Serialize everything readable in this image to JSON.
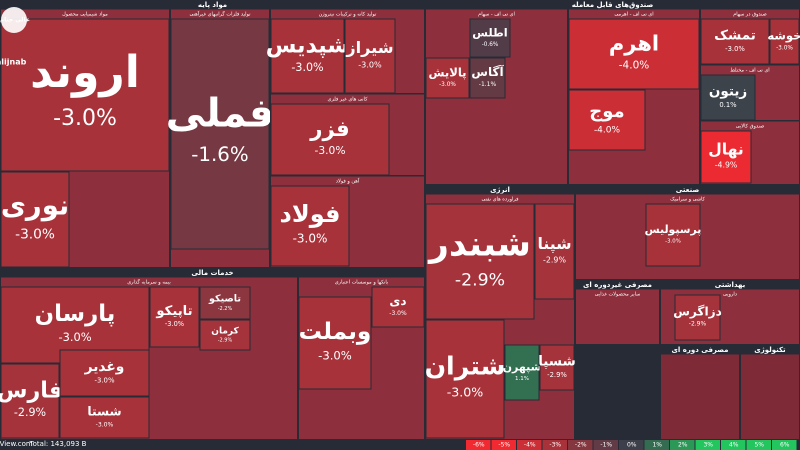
{
  "chart_data": {
    "type": "treemap",
    "logo": "عالی جناب",
    "watermark": "@Aalijnab",
    "brand": "BourseView.com",
    "total": "Total: 143,093 B",
    "sectors": [
      {
        "name": "مواد پایه",
        "groups": [
          {
            "name": "مواد شیمیایی محصول",
            "tiles": [
              {
                "name": "اروند",
                "value": -3.0,
                "label": "-3.0%"
              },
              {
                "name": "نوری",
                "value": -3.0,
                "label": "-3.0%"
              }
            ]
          },
          {
            "name": "تولید فلزات گرانبهای غیرآهنی",
            "tiles": [
              {
                "name": "فملی",
                "value": -1.6,
                "label": "-1.6%"
              }
            ]
          },
          {
            "name": "تولید کانه و ترکیبات نیتروژن",
            "tiles": [
              {
                "name": "شپدیس",
                "value": -3.0,
                "label": "-3.0%"
              },
              {
                "name": "شیراز",
                "value": -3.0,
                "label": "-3.0%"
              }
            ]
          },
          {
            "name": "کانی های غیر فلزی",
            "tiles": [
              {
                "name": "فزر",
                "value": -3.0,
                "label": "-3.0%"
              }
            ]
          },
          {
            "name": "آهن و فولاد",
            "tiles": [
              {
                "name": "فولاد",
                "value": -3.0,
                "label": "-3.0%"
              }
            ]
          }
        ]
      },
      {
        "name": "خدمات مالی",
        "groups": [
          {
            "name": "بیمه و سرمایه گذاری",
            "tiles": [
              {
                "name": "پارسان",
                "value": -3.0,
                "label": "-3.0%"
              },
              {
                "name": "فارس",
                "value": -2.9,
                "label": "-2.9%"
              },
              {
                "name": "وغدیر",
                "value": -3.0,
                "label": "-3.0%"
              },
              {
                "name": "شستا",
                "value": -3.0,
                "label": "-3.0%"
              },
              {
                "name": "تاپیکو",
                "value": -3.0,
                "label": "-3.0%"
              },
              {
                "name": "تاصیکو",
                "value": -2.2,
                "label": "-2.2%"
              },
              {
                "name": "کرمان",
                "value": -2.9,
                "label": "-2.9%"
              }
            ]
          },
          {
            "name": "بانکها و موسسات اعتباری",
            "tiles": [
              {
                "name": "وبملت",
                "value": -3.0,
                "label": "-3.0%"
              },
              {
                "name": "دی",
                "value": -3.0,
                "label": "-3.0%"
              }
            ]
          }
        ]
      },
      {
        "name": "صندوق‌های قابل معامله",
        "groups": [
          {
            "name": "ای تی اف - سهام",
            "tiles": [
              {
                "name": "اطلس",
                "value": -0.6,
                "label": "-0.6%"
              },
              {
                "name": "پالایش",
                "value": -3.0,
                "label": "-3.0%"
              },
              {
                "name": "آگاس",
                "value": -1.1,
                "label": "-1.1%"
              }
            ]
          },
          {
            "name": "ای تی اف - اهرمی",
            "tiles": [
              {
                "name": "اهرم",
                "value": -4.0,
                "label": "-4.0%"
              },
              {
                "name": "موج",
                "value": -4.0,
                "label": "-4.0%"
              }
            ]
          },
          {
            "name": "صندوق در سهام",
            "tiles": [
              {
                "name": "تمشک",
                "value": -3.0,
                "label": "-3.0%"
              },
              {
                "name": "خوشه",
                "value": -3.0,
                "label": "-3.0%"
              }
            ]
          },
          {
            "name": "ای تی اف - مختلط",
            "tiles": [
              {
                "name": "زیتون",
                "value": 0.1,
                "label": "0.1%"
              }
            ]
          },
          {
            "name": "صندوق کالایی",
            "tiles": [
              {
                "name": "نهال",
                "value": -4.9,
                "label": "-4.9%"
              }
            ]
          }
        ]
      },
      {
        "name": "انرژی",
        "groups": [
          {
            "name": "فراورده های نفتی",
            "tiles": [
              {
                "name": "شبندر",
                "value": -2.9,
                "label": "-2.9%"
              },
              {
                "name": "شپنا",
                "value": -2.9,
                "label": "-2.9%"
              },
              {
                "name": "شتران",
                "value": -3.0,
                "label": "-3.0%"
              },
              {
                "name": "شپهرن",
                "value": 1.1,
                "label": "1.1%"
              },
              {
                "name": "شسپا",
                "value": -2.9,
                "label": "-2.9%"
              }
            ]
          }
        ]
      },
      {
        "name": "صنعتی",
        "groups": [
          {
            "name": "کاشی و سرامیک",
            "tiles": [
              {
                "name": "پرسپولیس",
                "value": -3.0,
                "label": "-3.0%"
              }
            ]
          }
        ]
      },
      {
        "name": "مصرفی غیردوره ای",
        "groups": [
          {
            "name": "سایر محصولات غذایی",
            "tiles": []
          }
        ]
      },
      {
        "name": "بهداشتی",
        "groups": [
          {
            "name": "دارویی",
            "tiles": [
              {
                "name": "دزاگرس",
                "value": -2.9,
                "label": "-2.9%"
              }
            ]
          }
        ]
      },
      {
        "name": "مصرفی دوره ای",
        "groups": []
      },
      {
        "name": "تکنولوژی",
        "groups": []
      }
    ],
    "legend": [
      {
        "value": -6,
        "label": "-6%"
      },
      {
        "value": -5,
        "label": "-5%"
      },
      {
        "value": -4,
        "label": "-4%"
      },
      {
        "value": -3,
        "label": "-3%"
      },
      {
        "value": -2,
        "label": "-2%"
      },
      {
        "value": -1,
        "label": "-1%"
      },
      {
        "value": 0,
        "label": "0%"
      },
      {
        "value": 1,
        "label": "1%"
      },
      {
        "value": 2,
        "label": "2%"
      },
      {
        "value": 3,
        "label": "3%"
      },
      {
        "value": 4,
        "label": "4%"
      },
      {
        "value": 5,
        "label": "5%"
      },
      {
        "value": 6,
        "label": "6%"
      }
    ]
  }
}
